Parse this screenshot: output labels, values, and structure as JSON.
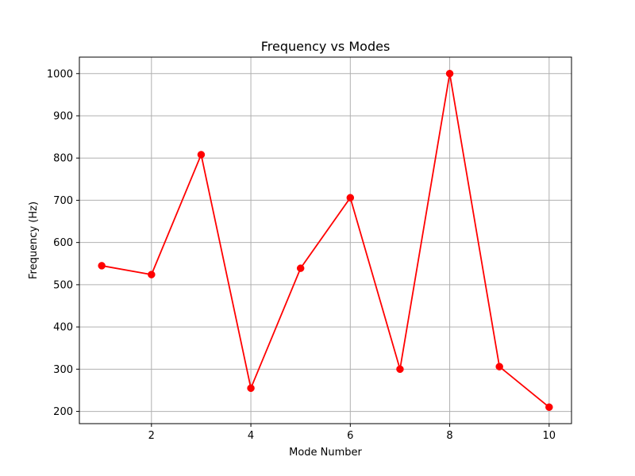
{
  "chart_data": {
    "type": "line",
    "title": "Frequency vs Modes",
    "xlabel": "Mode Number",
    "ylabel": "Frequency (Hz)",
    "x": [
      1,
      2,
      3,
      4,
      5,
      6,
      7,
      8,
      9,
      10
    ],
    "series": [
      {
        "values": [
          545,
          524,
          808,
          255,
          539,
          706,
          300,
          1000,
          306,
          210
        ],
        "color": "#ff0000",
        "marker": "circle"
      }
    ],
    "xlim": [
      0.55,
      10.45
    ],
    "ylim": [
      171,
      1039
    ],
    "xticks": [
      2,
      4,
      6,
      8,
      10
    ],
    "yticks": [
      200,
      300,
      400,
      500,
      600,
      700,
      800,
      900,
      1000
    ],
    "grid": true,
    "legend": false
  }
}
